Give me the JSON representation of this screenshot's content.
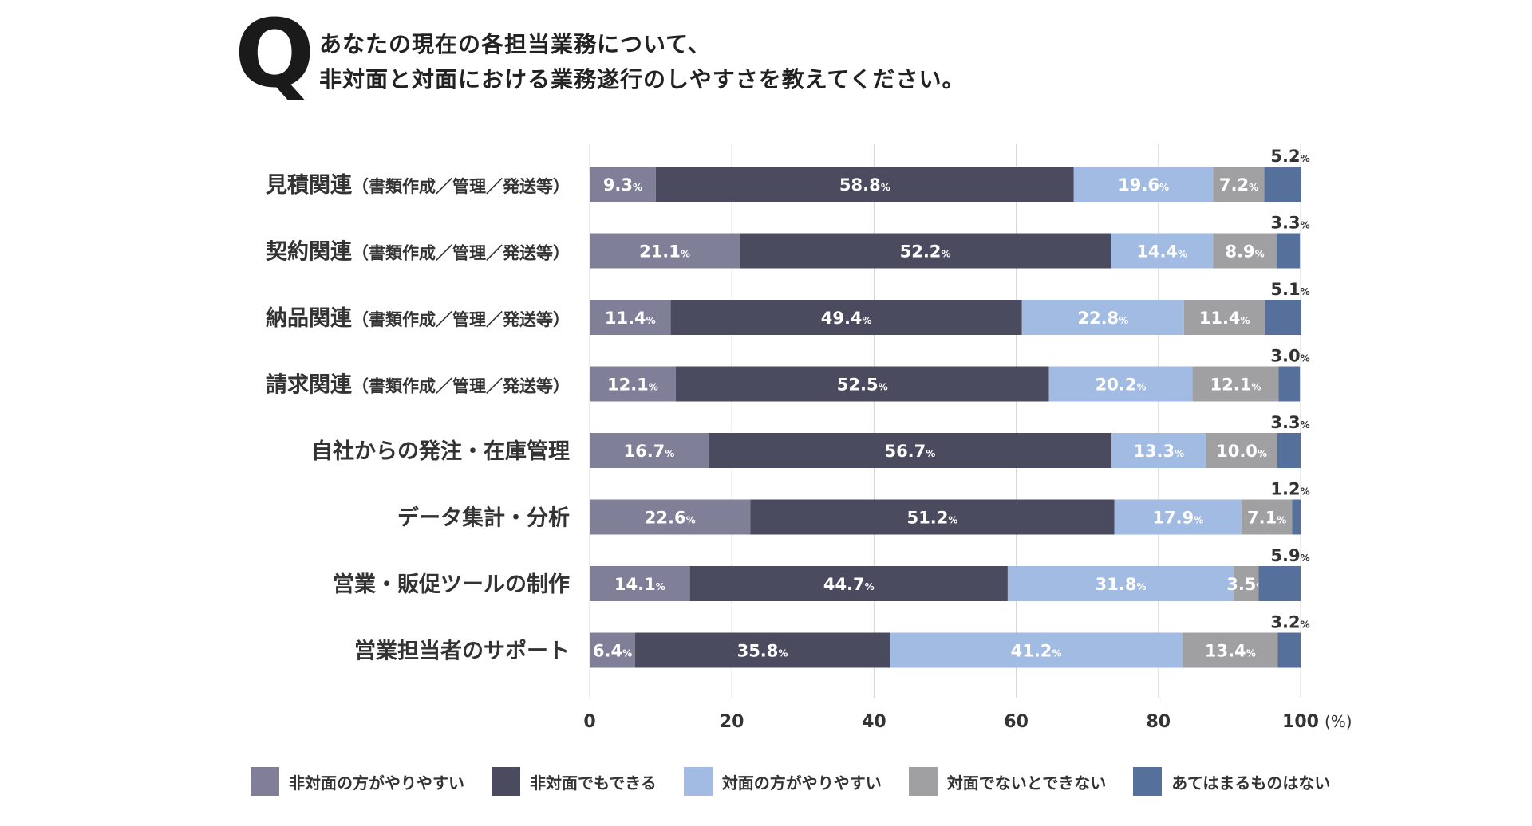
{
  "question": {
    "mark": "Q",
    "line1": "あなたの現在の各担当業務について、",
    "line2": "非対面と対面における業務遂行のしやすさを教えてください。"
  },
  "chart_data": {
    "type": "bar",
    "orientation": "horizontal-stacked",
    "title": "あなたの現在の各担当業務について、非対面と対面における業務遂行のしやすさを教えてください。",
    "xlim": [
      0,
      100
    ],
    "xticks": [
      "0",
      "20",
      "40",
      "60",
      "80",
      "100"
    ],
    "xunit": "(%)",
    "pct_symbol": "%",
    "categories": [
      {
        "main": "見積関連",
        "sub": "（書類作成／管理／発送等）"
      },
      {
        "main": "契約関連",
        "sub": "（書類作成／管理／発送等）"
      },
      {
        "main": "納品関連",
        "sub": "（書類作成／管理／発送等）"
      },
      {
        "main": "請求関連",
        "sub": "（書類作成／管理／発送等）"
      },
      {
        "main": "自社からの発注・在庫管理",
        "sub": ""
      },
      {
        "main": "データ集計・分析",
        "sub": ""
      },
      {
        "main": "営業・販促ツールの制作",
        "sub": ""
      },
      {
        "main": "営業担当者のサポート",
        "sub": ""
      }
    ],
    "series": [
      {
        "name": "非対面の方がやりやすい",
        "color": "#7f8098",
        "values": [
          9.3,
          21.1,
          11.4,
          12.1,
          16.7,
          22.6,
          14.1,
          6.4
        ]
      },
      {
        "name": "非対面でもできる",
        "color": "#4b4b60",
        "values": [
          58.8,
          52.2,
          49.4,
          52.5,
          56.7,
          51.2,
          44.7,
          35.8
        ]
      },
      {
        "name": "対面の方がやりやすい",
        "color": "#a1bbe2",
        "values": [
          19.6,
          14.4,
          22.8,
          20.2,
          13.3,
          17.9,
          31.8,
          41.2
        ]
      },
      {
        "name": "対面でないとできない",
        "color": "#a0a0a3",
        "values": [
          7.2,
          8.9,
          11.4,
          12.1,
          10.0,
          7.1,
          3.5,
          13.4
        ]
      },
      {
        "name": "あてはまるものはない",
        "color": "#56709c",
        "values": [
          5.2,
          3.3,
          5.1,
          3.0,
          3.3,
          1.2,
          5.9,
          3.2
        ]
      }
    ]
  }
}
